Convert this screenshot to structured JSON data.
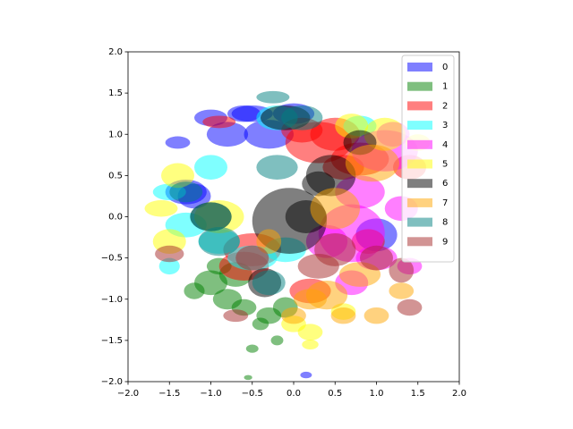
{
  "chart_data": {
    "type": "ellipse",
    "alpha": 0.5,
    "xlim": [
      -2,
      2
    ],
    "ylim": [
      -2,
      2
    ],
    "xticks": [
      {
        "value": -2,
        "label": "−2.0"
      },
      {
        "value": -1.5,
        "label": "−1.5"
      },
      {
        "value": -1,
        "label": "−1.0"
      },
      {
        "value": -0.5,
        "label": "−0.5"
      },
      {
        "value": 0,
        "label": "0.0"
      },
      {
        "value": 0.5,
        "label": "0.5"
      },
      {
        "value": 1,
        "label": "1.0"
      },
      {
        "value": 1.5,
        "label": "1.5"
      },
      {
        "value": 2,
        "label": "2.0"
      }
    ],
    "yticks": [
      {
        "value": -2,
        "label": "−2.0"
      },
      {
        "value": -1.5,
        "label": "−1.5"
      },
      {
        "value": -1,
        "label": "−1.0"
      },
      {
        "value": -0.5,
        "label": "−0.5"
      },
      {
        "value": 0,
        "label": "0.0"
      },
      {
        "value": 0.5,
        "label": "0.5"
      },
      {
        "value": 1,
        "label": "1.0"
      },
      {
        "value": 1.5,
        "label": "1.5"
      },
      {
        "value": 2,
        "label": "2.0"
      }
    ],
    "legend": "upper right",
    "series": [
      {
        "name": "0",
        "color": "#0000ff",
        "x": [
          -1.3,
          -1.0,
          -0.6,
          -0.3,
          0.0,
          -1.4,
          -1.2,
          0.15,
          1.0,
          -0.8,
          -0.5
        ],
        "values": [
          0.3,
          1.2,
          1.25,
          1.0,
          1.25,
          0.9,
          0.25,
          -1.92,
          -0.22,
          1.0,
          1.25
        ],
        "widths": [
          0.5,
          0.4,
          0.4,
          0.6,
          0.5,
          0.3,
          0.4,
          0.14,
          0.5,
          0.5,
          0.5
        ],
        "heights": [
          0.3,
          0.2,
          0.2,
          0.35,
          0.25,
          0.15,
          0.3,
          0.08,
          0.4,
          0.3,
          0.2
        ]
      },
      {
        "name": "1",
        "color": "#008000",
        "x": [
          -1.0,
          -0.8,
          -0.6,
          -0.4,
          -0.2,
          -0.7,
          -0.3,
          -0.5,
          -0.1,
          -1.2,
          -0.55,
          -0.9
        ],
        "values": [
          -0.8,
          -1.0,
          -1.1,
          -1.3,
          -1.5,
          -0.7,
          -1.2,
          -1.6,
          -1.1,
          -0.9,
          -1.95,
          -0.6
        ],
        "widths": [
          0.4,
          0.35,
          0.3,
          0.2,
          0.15,
          0.4,
          0.3,
          0.15,
          0.3,
          0.25,
          0.1,
          0.3
        ],
        "heights": [
          0.3,
          0.25,
          0.2,
          0.15,
          0.12,
          0.3,
          0.2,
          0.1,
          0.25,
          0.2,
          0.06,
          0.2
        ]
      },
      {
        "name": "2",
        "color": "#ff0000",
        "x": [
          0.3,
          0.5,
          0.1,
          -0.9,
          0.8,
          -0.5,
          0.6,
          1.4,
          0.2,
          -0.6,
          0.9
        ],
        "values": [
          0.9,
          1.0,
          1.05,
          1.15,
          0.7,
          -0.4,
          0.6,
          0.6,
          -0.9,
          -0.6,
          -0.3
        ],
        "widths": [
          0.8,
          0.6,
          0.5,
          0.4,
          0.7,
          0.7,
          0.5,
          0.4,
          0.5,
          0.6,
          0.4
        ],
        "heights": [
          0.5,
          0.4,
          0.3,
          0.15,
          0.4,
          0.4,
          0.3,
          0.3,
          0.3,
          0.35,
          0.3
        ]
      },
      {
        "name": "3",
        "color": "#00ffff",
        "x": [
          -1.5,
          -1.3,
          -1.0,
          0.8,
          -0.5,
          -0.2,
          -1.5,
          -0.1,
          -0.9
        ],
        "values": [
          0.3,
          -0.1,
          0.6,
          1.1,
          -0.5,
          1.2,
          -0.6,
          -0.4,
          -0.3
        ],
        "widths": [
          0.4,
          0.5,
          0.4,
          0.4,
          0.6,
          0.5,
          0.25,
          0.5,
          0.5
        ],
        "heights": [
          0.2,
          0.3,
          0.3,
          0.25,
          0.3,
          0.3,
          0.2,
          0.3,
          0.3
        ]
      },
      {
        "name": "4",
        "color": "#ff00ff",
        "x": [
          1.1,
          0.8,
          0.7,
          1.3,
          1.0,
          0.4,
          1.2,
          0.7,
          1.4
        ],
        "values": [
          0.8,
          0.3,
          -0.2,
          0.1,
          -0.5,
          -0.3,
          1.0,
          -0.8,
          -0.6
        ],
        "widths": [
          0.8,
          0.6,
          0.8,
          0.4,
          0.5,
          0.5,
          0.4,
          0.4,
          0.3
        ],
        "heights": [
          0.5,
          0.4,
          0.7,
          0.3,
          0.3,
          0.4,
          0.3,
          0.3,
          0.2
        ]
      },
      {
        "name": "5",
        "color": "#ffff00",
        "x": [
          -1.6,
          -1.4,
          -0.9,
          0.2,
          1.1,
          0.6,
          0.0,
          -1.5,
          1.5,
          0.7,
          0.2
        ],
        "values": [
          0.1,
          0.5,
          0.0,
          -1.4,
          1.0,
          -1.15,
          -1.3,
          -0.3,
          0.9,
          1.1,
          -1.55
        ],
        "widths": [
          0.4,
          0.4,
          0.6,
          0.3,
          0.5,
          0.3,
          0.3,
          0.4,
          0.3,
          0.4,
          0.2
        ],
        "heights": [
          0.2,
          0.3,
          0.4,
          0.2,
          0.4,
          0.2,
          0.2,
          0.3,
          0.2,
          0.3,
          0.12
        ]
      },
      {
        "name": "6",
        "color": "#000000",
        "x": [
          -0.05,
          0.45,
          0.8,
          0.15,
          -0.35,
          -0.1,
          -1.0,
          0.3
        ],
        "values": [
          -0.05,
          0.5,
          0.9,
          0.0,
          -0.8,
          1.2,
          0.0,
          0.4
        ],
        "widths": [
          0.9,
          0.6,
          0.4,
          0.5,
          0.4,
          0.6,
          0.5,
          0.4
        ],
        "heights": [
          0.8,
          0.5,
          0.3,
          0.4,
          0.35,
          0.3,
          0.35,
          0.3
        ]
      },
      {
        "name": "7",
        "color": "#ffa500",
        "x": [
          0.95,
          0.5,
          0.4,
          0.8,
          -0.3,
          1.0,
          0.2,
          0.0,
          0.6,
          1.3
        ],
        "values": [
          0.65,
          0.1,
          -0.95,
          -0.7,
          -0.3,
          -1.2,
          -1.0,
          -1.2,
          -1.2,
          -0.9
        ],
        "widths": [
          0.65,
          0.6,
          0.5,
          0.5,
          0.3,
          0.3,
          0.4,
          0.3,
          0.3,
          0.3
        ],
        "heights": [
          0.45,
          0.5,
          0.35,
          0.3,
          0.3,
          0.2,
          0.25,
          0.2,
          0.2,
          0.2
        ]
      },
      {
        "name": "8",
        "color": "#008080",
        "x": [
          -0.25,
          -0.2,
          -1.0,
          -0.9,
          -0.3,
          -1.3,
          0.1
        ],
        "values": [
          1.45,
          0.6,
          0.0,
          -0.3,
          -0.8,
          0.3,
          1.2
        ],
        "widths": [
          0.4,
          0.5,
          0.5,
          0.5,
          0.4,
          0.4,
          0.5
        ],
        "heights": [
          0.15,
          0.3,
          0.35,
          0.35,
          0.3,
          0.25,
          0.3
        ]
      },
      {
        "name": "9",
        "color": "#a52a2a",
        "x": [
          1.4,
          0.5,
          1.3,
          -1.5,
          -0.7,
          0.3,
          -0.5,
          1.0
        ],
        "values": [
          -1.1,
          -0.4,
          -0.65,
          -0.45,
          -1.2,
          -0.6,
          -0.5,
          -0.5
        ],
        "widths": [
          0.3,
          0.5,
          0.3,
          0.35,
          0.3,
          0.5,
          0.4,
          0.4
        ],
        "heights": [
          0.2,
          0.4,
          0.3,
          0.2,
          0.15,
          0.3,
          0.3,
          0.3
        ]
      }
    ]
  }
}
